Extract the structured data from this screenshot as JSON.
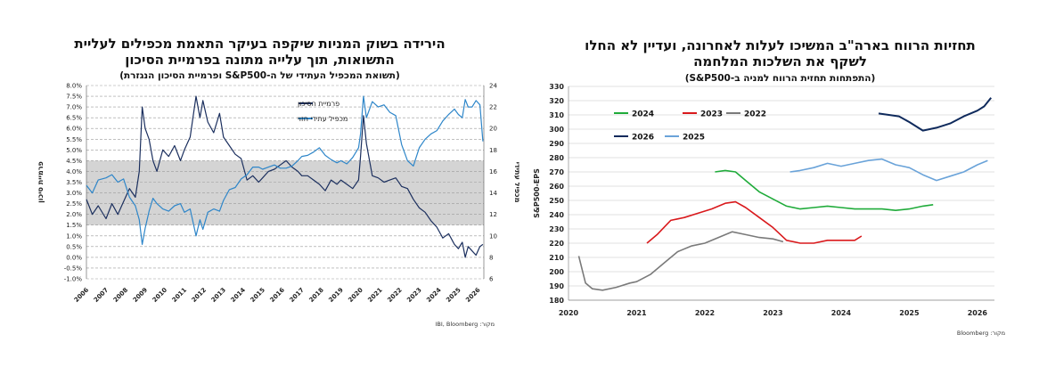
{
  "left_panel": {
    "title_line1": "הירידה בשוק המניות שיקפה בעיקר התאמת מכפילים לעליית",
    "title_line2": "התשואות, תוך עלייה מתונה בפרמיית הסיכון",
    "subtitle": "(תשואת המכפיל העתידי של ה-S&P500 ופרמיית הסיכון הנגזרת)",
    "source": "מקור: IBI, Bloomberg",
    "ylabel_left": "פרמיית סיכון",
    "ylabel_right": "מכפיל עתידי",
    "legend": [
      {
        "label": "פרמיית הסיכון",
        "color": "#1b2f5e"
      },
      {
        "label": "מכפיל עתידי חזוי",
        "color": "#2e86c9"
      }
    ]
  },
  "right_panel": {
    "title_line1": "תחזיות הרווח בארה\"ב המשיכו לעלות לאחרונה, ועדיין לא החלו",
    "title_line2": "לשקף את השלכות המלחמה",
    "subtitle": "(התפתחות תחזית הרווח למניה ב-S&P500)",
    "source": "מקור: Bloomberg",
    "ylabel": "S&P500-EPS"
  },
  "chart_data": [
    {
      "type": "line",
      "title": "הירידה בשוק המניות שיקפה בעיקר התאמת מכפילים לעליית התשואות, תוך עלייה מתונה בפרמיית הסיכון",
      "x_ticks": [
        "2006",
        "2007",
        "2008",
        "2009",
        "2010",
        "2011",
        "2012",
        "2013",
        "2014",
        "2015",
        "2016",
        "2017",
        "2018",
        "2019",
        "2020",
        "2021",
        "2022",
        "2023",
        "2024",
        "2025",
        "2026"
      ],
      "x_range": [
        2006,
        2026.3
      ],
      "y_left_ticks": [
        "8.0%",
        "7.5%",
        "7.0%",
        "6.5%",
        "6.0%",
        "5.5%",
        "5.0%",
        "4.5%",
        "4.0%",
        "3.5%",
        "3.0%",
        "2.5%",
        "2.0%",
        "1.5%",
        "1.0%",
        "0.5%",
        "0.0%",
        "-0.5%",
        "-1.0%"
      ],
      "y_left_range": [
        -1.0,
        8.0
      ],
      "y_right_ticks": [
        "24",
        "22",
        "20",
        "18",
        "16",
        "14",
        "12",
        "10",
        "8",
        "6"
      ],
      "y_right_range": [
        6,
        24
      ],
      "shaded_band_left_axis": [
        1.5,
        4.5
      ],
      "series": [
        {
          "name": "פרמיית הסיכון",
          "axis": "left",
          "x": [
            2006.0,
            2006.3,
            2006.6,
            2007.0,
            2007.3,
            2007.6,
            2007.9,
            2008.2,
            2008.5,
            2008.7,
            2008.85,
            2009.0,
            2009.2,
            2009.4,
            2009.6,
            2009.9,
            2010.2,
            2010.5,
            2010.8,
            2011.0,
            2011.3,
            2011.6,
            2011.8,
            2011.95,
            2012.2,
            2012.5,
            2012.8,
            2013.0,
            2013.3,
            2013.6,
            2013.9,
            2014.2,
            2014.5,
            2014.8,
            2015.0,
            2015.3,
            2015.6,
            2015.9,
            2016.2,
            2016.5,
            2016.8,
            2017.0,
            2017.3,
            2017.6,
            2017.9,
            2018.2,
            2018.5,
            2018.8,
            2019.0,
            2019.3,
            2019.6,
            2019.9,
            2020.0,
            2020.15,
            2020.3,
            2020.6,
            2020.9,
            2021.2,
            2021.5,
            2021.8,
            2022.1,
            2022.4,
            2022.7,
            2023.0,
            2023.3,
            2023.6,
            2023.9,
            2024.2,
            2024.5,
            2024.8,
            2025.0,
            2025.2,
            2025.35,
            2025.5,
            2025.7,
            2025.9,
            2026.1,
            2026.25
          ],
          "values": [
            2.7,
            2.0,
            2.4,
            1.8,
            2.5,
            2.0,
            2.6,
            3.2,
            2.8,
            4.0,
            7.0,
            6.0,
            5.5,
            4.5,
            4.0,
            5.0,
            4.7,
            5.2,
            4.5,
            5.0,
            5.6,
            7.5,
            6.5,
            7.3,
            6.3,
            5.8,
            6.7,
            5.6,
            5.2,
            4.8,
            4.6,
            3.6,
            3.8,
            3.5,
            3.7,
            4.0,
            4.1,
            4.3,
            4.5,
            4.2,
            4.0,
            3.8,
            3.8,
            3.6,
            3.4,
            3.1,
            3.6,
            3.4,
            3.6,
            3.4,
            3.2,
            3.6,
            4.7,
            6.6,
            5.3,
            3.8,
            3.7,
            3.5,
            3.6,
            3.7,
            3.3,
            3.2,
            2.7,
            2.3,
            2.1,
            1.7,
            1.4,
            0.9,
            1.1,
            0.6,
            0.4,
            0.7,
            0.0,
            0.5,
            0.3,
            0.1,
            0.5,
            0.6
          ]
        },
        {
          "name": "מכפיל עתידי חזוי",
          "axis": "right",
          "x": [
            2006.0,
            2006.3,
            2006.6,
            2007.0,
            2007.3,
            2007.6,
            2007.9,
            2008.2,
            2008.5,
            2008.7,
            2008.85,
            2009.0,
            2009.2,
            2009.4,
            2009.6,
            2009.9,
            2010.2,
            2010.5,
            2010.8,
            2011.0,
            2011.3,
            2011.6,
            2011.8,
            2011.95,
            2012.2,
            2012.5,
            2012.8,
            2013.0,
            2013.3,
            2013.6,
            2013.9,
            2014.2,
            2014.5,
            2014.8,
            2015.0,
            2015.3,
            2015.6,
            2015.9,
            2016.2,
            2016.5,
            2016.8,
            2017.0,
            2017.3,
            2017.6,
            2017.9,
            2018.2,
            2018.5,
            2018.8,
            2019.0,
            2019.3,
            2019.6,
            2019.9,
            2020.0,
            2020.15,
            2020.3,
            2020.6,
            2020.9,
            2021.2,
            2021.5,
            2021.8,
            2022.1,
            2022.4,
            2022.7,
            2023.0,
            2023.3,
            2023.6,
            2023.9,
            2024.2,
            2024.5,
            2024.8,
            2025.0,
            2025.2,
            2025.35,
            2025.5,
            2025.7,
            2025.9,
            2026.1,
            2026.25
          ],
          "values": [
            14.7,
            14.0,
            15.2,
            15.4,
            15.7,
            15.0,
            15.3,
            13.6,
            12.8,
            11.5,
            9.2,
            10.7,
            12.3,
            13.5,
            13.0,
            12.5,
            12.3,
            12.8,
            13.0,
            12.2,
            12.5,
            10.0,
            11.5,
            10.6,
            12.2,
            12.5,
            12.3,
            13.3,
            14.3,
            14.5,
            15.3,
            15.7,
            16.4,
            16.4,
            16.2,
            16.4,
            16.6,
            16.3,
            16.3,
            16.5,
            17.0,
            17.4,
            17.5,
            17.8,
            18.2,
            17.5,
            17.1,
            16.8,
            17.0,
            16.7,
            17.3,
            18.2,
            19.5,
            23.0,
            21.0,
            22.5,
            22.0,
            22.2,
            21.5,
            21.2,
            18.5,
            17.0,
            16.5,
            18.2,
            19.0,
            19.5,
            19.8,
            20.7,
            21.3,
            21.8,
            21.3,
            21.0,
            22.7,
            22.0,
            22.0,
            22.6,
            22.2,
            18.8
          ]
        }
      ]
    },
    {
      "type": "line",
      "title": "תחזיות הרווח בארה\"ב המשיכו לעלות לאחרונה, ועדיין לא החלו לשקף את השלכות המלחמה",
      "x_ticks": [
        "2020",
        "2021",
        "2022",
        "2023",
        "2024",
        "2025",
        "2026"
      ],
      "x_range": [
        2020,
        2026.25
      ],
      "y_ticks": [
        "330",
        "320",
        "310",
        "300",
        "290",
        "280",
        "270",
        "260",
        "250",
        "240",
        "230",
        "220",
        "210",
        "200",
        "190",
        "180"
      ],
      "y_range": [
        180,
        330
      ],
      "ylabel": "S&P500-EPS",
      "series": [
        {
          "name": "2022",
          "color": "#7a7a7a",
          "x": [
            2020.15,
            2020.25,
            2020.35,
            2020.5,
            2020.7,
            2020.9,
            2021.0,
            2021.2,
            2021.4,
            2021.6,
            2021.8,
            2022.0,
            2022.2,
            2022.4,
            2022.6,
            2022.8,
            2023.0,
            2023.15
          ],
          "values": [
            211,
            192,
            188,
            187,
            189,
            192,
            193,
            198,
            206,
            214,
            218,
            220,
            224,
            228,
            226,
            224,
            223,
            221
          ]
        },
        {
          "name": "2023",
          "color": "#d9191c",
          "x": [
            2021.15,
            2021.3,
            2021.5,
            2021.7,
            2021.9,
            2022.1,
            2022.3,
            2022.45,
            2022.6,
            2022.8,
            2023.0,
            2023.2,
            2023.4,
            2023.6,
            2023.8,
            2024.0,
            2024.2,
            2024.3
          ],
          "values": [
            220,
            226,
            236,
            238,
            241,
            244,
            248,
            249,
            245,
            238,
            231,
            222,
            220,
            220,
            222,
            222,
            222,
            225
          ]
        },
        {
          "name": "2024",
          "color": "#1fab3a",
          "x": [
            2022.15,
            2022.3,
            2022.45,
            2022.6,
            2022.8,
            2023.0,
            2023.2,
            2023.4,
            2023.6,
            2023.8,
            2024.0,
            2024.2,
            2024.4,
            2024.6,
            2024.8,
            2025.0,
            2025.2,
            2025.35
          ],
          "values": [
            270,
            271,
            270,
            264,
            256,
            251,
            246,
            244,
            245,
            246,
            245,
            244,
            244,
            244,
            243,
            244,
            246,
            247
          ]
        },
        {
          "name": "2025",
          "color": "#6aa3d9",
          "x": [
            2023.25,
            2023.4,
            2023.6,
            2023.8,
            2024.0,
            2024.2,
            2024.4,
            2024.6,
            2024.8,
            2025.0,
            2025.2,
            2025.4,
            2025.6,
            2025.8,
            2026.0,
            2026.15
          ],
          "values": [
            270,
            271,
            273,
            276,
            274,
            276,
            278,
            279,
            275,
            273,
            268,
            264,
            267,
            270,
            275,
            278
          ]
        },
        {
          "name": "2026",
          "color": "#0f2a5c",
          "x": [
            2024.55,
            2024.7,
            2024.85,
            2025.0,
            2025.2,
            2025.4,
            2025.6,
            2025.8,
            2026.0,
            2026.1,
            2026.2
          ],
          "values": [
            311,
            310,
            309,
            305,
            299,
            301,
            304,
            309,
            313,
            316,
            322
          ]
        }
      ]
    }
  ]
}
